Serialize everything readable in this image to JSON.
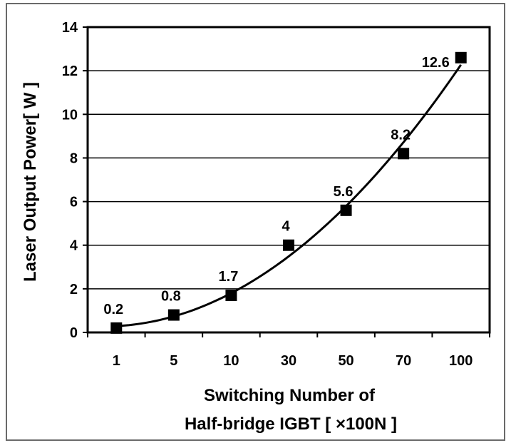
{
  "chart_data": {
    "type": "line",
    "x_categories": [
      "1",
      "5",
      "10",
      "30",
      "50",
      "70",
      "100"
    ],
    "series": [
      {
        "values": [
          0.2,
          0.8,
          1.7,
          4,
          5.6,
          8.2,
          12.6
        ],
        "labels": [
          "0.2",
          "0.8",
          "1.7",
          "4",
          "5.6",
          "8.2",
          "12.6"
        ],
        "marker": "square",
        "color": "#000000"
      }
    ],
    "trendline": {
      "type": "polynomial",
      "color": "#000000"
    },
    "xlabel_line1": "Switching Number of",
    "xlabel_line2": "Half-bridge IGBT [ ×100N ]",
    "ylabel": "Laser Output Power[ W ]",
    "ylim": [
      0,
      14
    ],
    "yticks": [
      "0",
      "2",
      "4",
      "6",
      "8",
      "10",
      "12",
      "14"
    ],
    "grid": "horizontal"
  }
}
